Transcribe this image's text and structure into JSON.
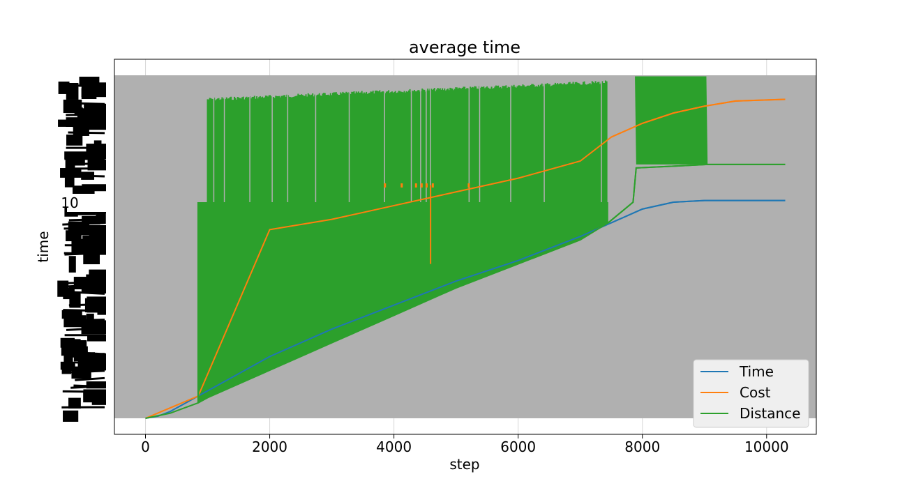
{
  "chart_data": {
    "type": "line",
    "title": "average time",
    "xlabel": "step",
    "ylabel": "time",
    "xlim": [
      -500,
      10800
    ],
    "x_ticks": [
      0,
      2000,
      4000,
      6000,
      8000,
      10000
    ],
    "y_tick_visible": "10",
    "shaded_band": {
      "color": "#b0b0b0"
    },
    "legend": {
      "placement": "bottom-right",
      "entries": [
        "Time",
        "Cost",
        "Distance"
      ]
    },
    "series": [
      {
        "name": "Time",
        "color": "#1f77b4",
        "x": [
          0,
          200,
          400,
          600,
          850,
          1000,
          2000,
          3000,
          4000,
          5000,
          6000,
          7000,
          7500,
          8000,
          8500,
          9000,
          9500,
          10300
        ],
        "y": [
          0,
          0.006,
          0.02,
          0.04,
          0.065,
          0.08,
          0.18,
          0.26,
          0.33,
          0.4,
          0.46,
          0.53,
          0.57,
          0.61,
          0.63,
          0.635,
          0.635,
          0.635
        ]
      },
      {
        "name": "Cost",
        "color": "#ff7f0e",
        "x": [
          0,
          850,
          2000,
          3000,
          4000,
          5000,
          6000,
          7000,
          7500,
          8000,
          8500,
          9000,
          9500,
          10300
        ],
        "y": [
          0,
          0.065,
          0.55,
          0.58,
          0.62,
          0.66,
          0.7,
          0.75,
          0.82,
          0.86,
          0.89,
          0.91,
          0.925,
          0.93
        ]
      },
      {
        "name": "Distance",
        "color": "#2ca02c",
        "x": [
          0,
          400,
          850,
          1000,
          2000,
          3000,
          4000,
          5000,
          6000,
          7000,
          7450,
          7850,
          7900,
          8500,
          9050,
          10300
        ],
        "y": [
          0,
          0.015,
          0.045,
          0.06,
          0.14,
          0.22,
          0.3,
          0.38,
          0.45,
          0.52,
          0.57,
          0.63,
          0.73,
          0.735,
          0.74,
          0.74
        ]
      }
    ]
  }
}
